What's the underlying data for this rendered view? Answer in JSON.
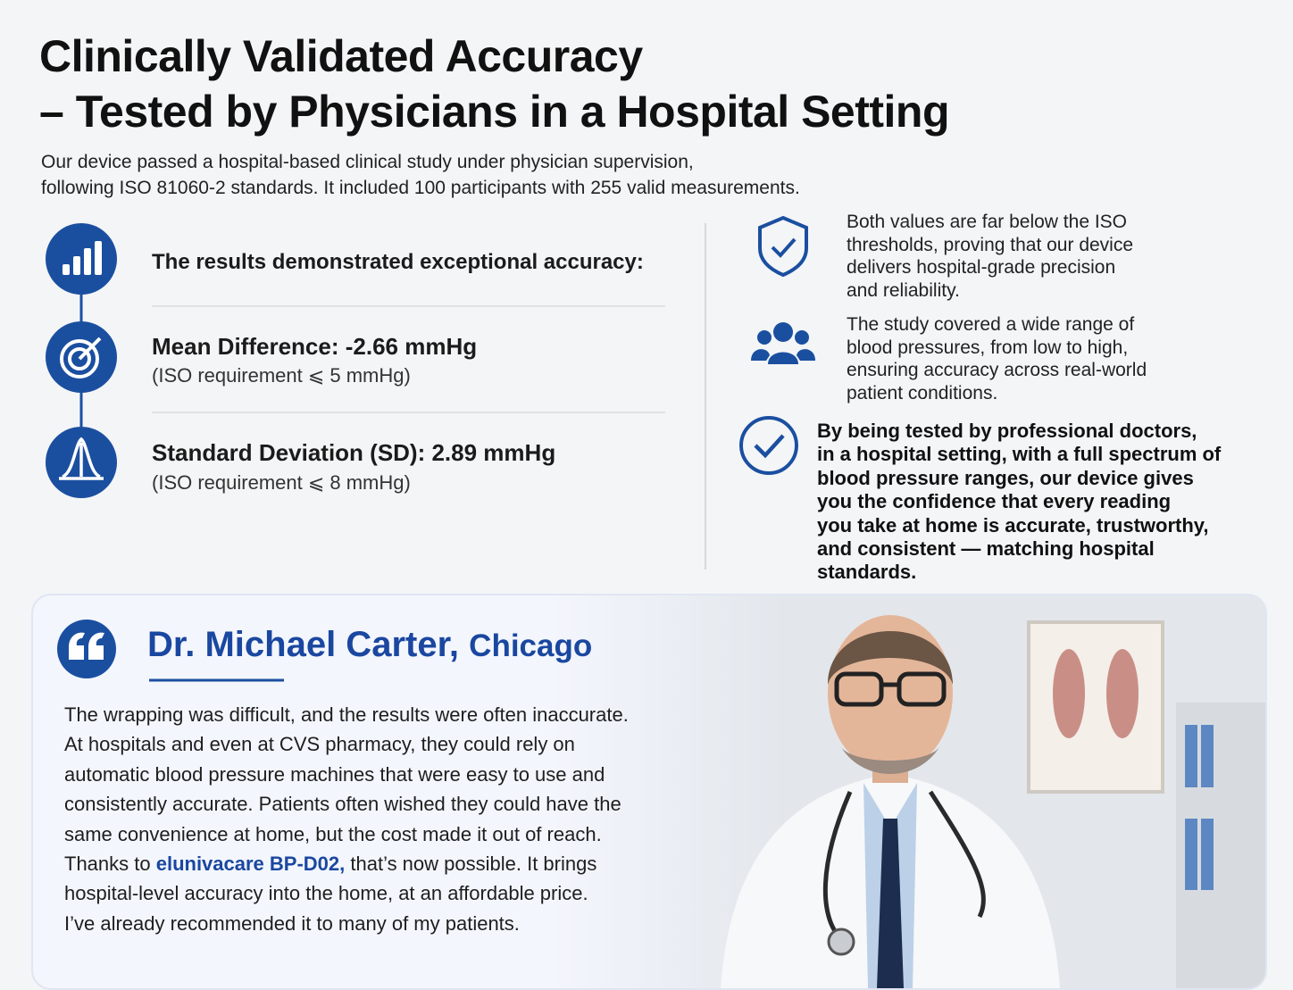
{
  "header": {
    "title_lines": [
      "Clinically Validated Accuracy",
      "– Tested by Physicians in a Hospital Setting"
    ],
    "intro_lines": [
      "Our device passed a hospital-based clinical study under physician supervision,",
      "following ISO 81060-2 standards. It included 100 participants with 255 valid measurements."
    ]
  },
  "results": {
    "heading": "The results demonstrated exceptional accuracy:",
    "items": [
      {
        "label": "Mean Difference: -2.66 mmHg",
        "note": "(ISO requirement ⩽ 5 mmHg)"
      },
      {
        "label": "Standard Deviation (SD): 2.89 mmHg",
        "note": "(ISO requirement ⩽ 8 mmHg)"
      }
    ]
  },
  "highlights": [
    {
      "lines": [
        "Both values are far below the ISO",
        "thresholds, proving that our device",
        "delivers hospital-grade precision",
        "and reliability."
      ]
    },
    {
      "lines": [
        "The study covered a wide range of",
        "blood pressures, from low to high,",
        "ensuring accuracy across real-world",
        "patient conditions."
      ]
    },
    {
      "lines": [
        "By being tested by professional doctors,",
        "in a hospital setting, with a full spectrum of",
        "blood pressure ranges, our device gives",
        "you the confidence that every reading",
        "you take at home is accurate, trustworthy,",
        "and consistent — matching hospital",
        "standards."
      ]
    }
  ],
  "testimonial": {
    "name": "Dr. Michael Carter,",
    "city": "Chicago",
    "lines": [
      "The wrapping was difficult, and the results were often inaccurate.",
      "At hospitals and even at CVS pharmacy, they could rely on",
      "automatic blood pressure machines that were easy to use and",
      "consistently accurate. Patients often wished they could have the",
      "same convenience at home, but the cost made it out of reach."
    ],
    "brand_line": {
      "before": "Thanks to ",
      "brand": "elunivacare BP-D02,",
      "after": " that’s now possible. It brings"
    },
    "closing_lines": [
      "hospital-level accuracy into the home, at an affordable price.",
      "I’ve already recommended it to many of my patients."
    ]
  }
}
